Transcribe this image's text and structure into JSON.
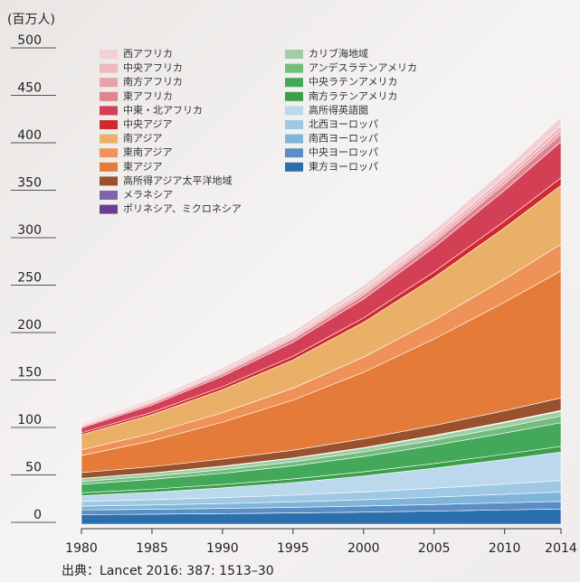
{
  "chart_data": {
    "type": "area",
    "stacked": true,
    "y_unit": "(百万人)",
    "source": "出典：Lancet 2016: 387: 1513–30",
    "x": [
      1980,
      1985,
      1990,
      1995,
      2000,
      2005,
      2010,
      2014
    ],
    "xlim": [
      1980,
      2014
    ],
    "xticks": [
      1980,
      1985,
      1990,
      1995,
      2000,
      2005,
      2010,
      2014
    ],
    "ylim": [
      0,
      500
    ],
    "yticks": [
      0,
      50,
      100,
      150,
      200,
      250,
      300,
      350,
      400,
      450,
      500
    ],
    "series": [
      {
        "name": "西アフリカ",
        "color": "#f2d0d4",
        "values": [
          1.5,
          2.1,
          2.9,
          3.8,
          4.9,
          6.2,
          7.7,
          9
        ]
      },
      {
        "name": "中央アフリカ",
        "color": "#efb9be",
        "values": [
          1,
          1.3,
          1.7,
          2.2,
          2.8,
          3.5,
          4.3,
          5
        ]
      },
      {
        "name": "南方アフリカ",
        "color": "#e8a1a8",
        "values": [
          1,
          1.2,
          1.5,
          1.9,
          2.4,
          2.9,
          3.5,
          4
        ]
      },
      {
        "name": "東アフリカ",
        "color": "#de8590",
        "values": [
          1.5,
          2,
          2.7,
          3.5,
          4.4,
          5.6,
          6.9,
          8
        ]
      },
      {
        "name": "中東・北アフリカ",
        "color": "#d33f55",
        "values": [
          5,
          7.6,
          10.9,
          14.9,
          19.9,
          25.8,
          32.4,
          38
        ]
      },
      {
        "name": "中央アジア",
        "color": "#cf2a2e",
        "values": [
          2,
          2.5,
          3.1,
          3.8,
          4.7,
          5.8,
          7,
          8
        ]
      },
      {
        "name": "南アジア",
        "color": "#ebb067",
        "values": [
          16,
          19.7,
          24.3,
          29.8,
          36.7,
          45,
          54.2,
          62
        ]
      },
      {
        "name": "東南アジア",
        "color": "#ee9258",
        "values": [
          6,
          7.8,
          10,
          12.6,
          15.9,
          19.9,
          24.3,
          28
        ]
      },
      {
        "name": "東アジア",
        "color": "#e57b39",
        "values": [
          18,
          27.3,
          38.9,
          52.8,
          70.2,
          91.1,
          114.3,
          134
        ]
      },
      {
        "name": "高所得アジア太平洋地域",
        "color": "#99512e",
        "values": [
          6,
          6.6,
          7.3,
          8.1,
          9.2,
          10.4,
          11.8,
          13
        ]
      },
      {
        "name": "メラネシア",
        "color": "#8064a8",
        "values": [
          0.2,
          0.2,
          0.3,
          0.3,
          0.3,
          0.4,
          0.4,
          0.5
        ]
      },
      {
        "name": "ポリネシア、ミクロネシア",
        "color": "#6c3d91",
        "values": [
          0.1,
          0.1,
          0.2,
          0.2,
          0.3,
          0.4,
          0.4,
          0.5
        ]
      },
      {
        "name": "カリブ海地域",
        "color": "#9fcda4",
        "values": [
          3,
          3.2,
          3.4,
          3.6,
          3.9,
          4.3,
          4.7,
          5
        ]
      },
      {
        "name": "アンデスラテンアメリカ",
        "color": "#72bd7e",
        "values": [
          3,
          3.3,
          3.7,
          4.2,
          4.8,
          5.5,
          6.3,
          7
        ]
      },
      {
        "name": "中央ラテンアメリカ",
        "color": "#44a85a",
        "values": [
          9,
          10.3,
          11.9,
          13.8,
          16.2,
          19.1,
          22.3,
          25
        ]
      },
      {
        "name": "南方ラテンアメリカ",
        "color": "#3a9e4a",
        "values": [
          3,
          3.2,
          3.5,
          3.9,
          4.4,
          4.9,
          5.5,
          6
        ]
      },
      {
        "name": "高所得英語圏",
        "color": "#bcd8ec",
        "values": [
          6,
          7.9,
          10.3,
          13.2,
          16.8,
          21.1,
          25.9,
          30
        ]
      },
      {
        "name": "北西ヨーロッパ",
        "color": "#9ec8e3",
        "values": [
          5,
          5.6,
          6.3,
          7.1,
          8.2,
          9.4,
          10.8,
          12
        ]
      },
      {
        "name": "南西ヨーロッパ",
        "color": "#7fb5da",
        "values": [
          4,
          4.5,
          5.1,
          5.8,
          6.7,
          7.8,
          9,
          10
        ]
      },
      {
        "name": "中央ヨーロッパ",
        "color": "#5b8ec4",
        "values": [
          5,
          5.2,
          5.5,
          5.9,
          6.4,
          6.9,
          7.5,
          8
        ]
      },
      {
        "name": "東方ヨーロッパ",
        "color": "#2c6fad",
        "values": [
          10,
          10.5,
          11.1,
          11.8,
          12.7,
          13.8,
          15,
          16
        ]
      }
    ]
  }
}
